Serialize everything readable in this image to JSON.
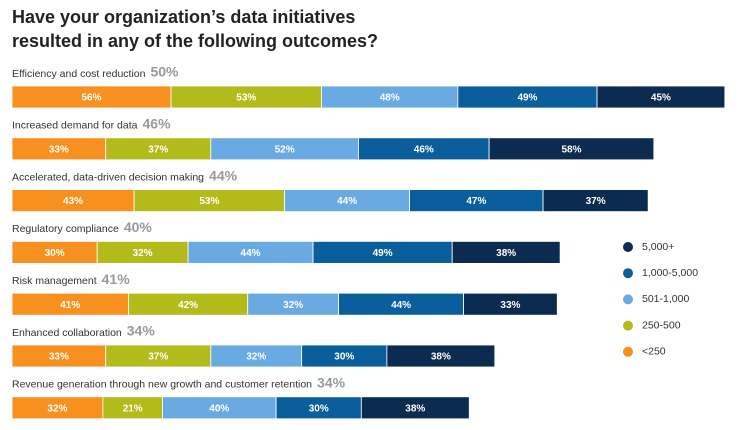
{
  "chart_data": {
    "type": "stacked-bar",
    "title": [
      "Have your organization’s data initiatives",
      "resulted in any of the following outcomes?"
    ],
    "categories": [
      "Efficiency and cost reduction",
      "Increased demand for data",
      "Accelerated, data-driven decision making",
      "Regulatory compliance",
      "Risk management",
      "Enhanced collaboration",
      "Revenue generation through new growth and customer retention"
    ],
    "overall": [
      50,
      46,
      44,
      40,
      41,
      34,
      34
    ],
    "overall_labels": [
      "50%",
      "46%",
      "44%",
      "40%",
      "41%",
      "34%",
      "34%"
    ],
    "series": [
      {
        "name": "<250",
        "color": "#f7901e",
        "values": [
          56,
          33,
          43,
          30,
          41,
          33,
          32
        ],
        "value_labels": [
          "56%",
          "33%",
          "43%",
          "30%",
          "41%",
          "33%",
          "32%"
        ]
      },
      {
        "name": "250-500",
        "color": "#b3bb1b",
        "values": [
          53,
          37,
          53,
          32,
          42,
          37,
          21
        ],
        "value_labels": [
          "53%",
          "37%",
          "53%",
          "32%",
          "42%",
          "37%",
          "21%"
        ]
      },
      {
        "name": "501-1,000",
        "color": "#6aaae2",
        "values": [
          48,
          52,
          44,
          44,
          32,
          32,
          40
        ],
        "value_labels": [
          "48%",
          "52%",
          "44%",
          "44%",
          "32%",
          "32%",
          "40%"
        ]
      },
      {
        "name": "1,000-5,000",
        "color": "#0a5e9b",
        "values": [
          49,
          46,
          47,
          49,
          44,
          30,
          30
        ],
        "value_labels": [
          "49%",
          "46%",
          "47%",
          "49%",
          "44%",
          "30%",
          "30%"
        ]
      },
      {
        "name": "5,000+",
        "color": "#0c2b50",
        "values": [
          45,
          58,
          37,
          38,
          33,
          38,
          38
        ],
        "value_labels": [
          "45%",
          "58%",
          "37%",
          "38%",
          "33%",
          "38%",
          "38%"
        ]
      }
    ]
  }
}
